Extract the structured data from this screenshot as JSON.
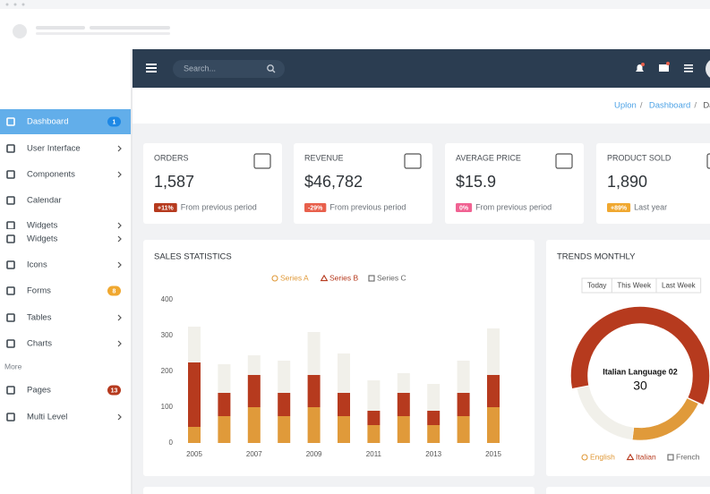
{
  "topbar": {
    "search_placeholder": "Search..."
  },
  "breadcrumb": [
    "Uplon",
    "Dashboard",
    "Dashboard"
  ],
  "sidebar": {
    "menu": [
      {
        "label": "Dashboard",
        "badge": "1",
        "badge_color": "#1e88e5"
      },
      {
        "label": "User Interface"
      },
      {
        "label": "Components"
      },
      {
        "label": "Calendar"
      },
      {
        "label": "Widgets"
      },
      {
        "label": "Widgets"
      },
      {
        "label": "Icons"
      },
      {
        "label": "Forms",
        "badge": "8",
        "badge_color": "#f0a830"
      },
      {
        "label": "Tables"
      },
      {
        "label": "Charts"
      }
    ],
    "more_label": "More",
    "more_menu": [
      {
        "label": "Pages",
        "badge": "13",
        "badge_color": "#b63a1e"
      },
      {
        "label": "Multi Level"
      }
    ]
  },
  "stats": [
    {
      "title": "ORDERS",
      "value": "1,587",
      "change": "+11%",
      "change_color": "#b63a1e",
      "note": "From previous period"
    },
    {
      "title": "REVENUE",
      "value": "$46,782",
      "change": "-29%",
      "change_color": "#e8604c",
      "note": "From previous period"
    },
    {
      "title": "AVERAGE PRICE",
      "value": "$15.9",
      "change": "0%",
      "change_color": "#f06292",
      "note": "From previous period"
    },
    {
      "title": "PRODUCT SOLD",
      "value": "1,890",
      "change": "+89%",
      "change_color": "#f0a830",
      "note": "Last year"
    }
  ],
  "chart_data": [
    {
      "type": "bar",
      "stacked": true,
      "title": "SALES STATISTICS",
      "categories": [
        "2005",
        null,
        "2007",
        null,
        "2009",
        null,
        "2011",
        null,
        "2013",
        null,
        "2015"
      ],
      "series": [
        {
          "name": "Series A",
          "color": "#e09a3a",
          "marker": "circle",
          "values": [
            45,
            75,
            100,
            75,
            100,
            75,
            50,
            75,
            50,
            75,
            100
          ]
        },
        {
          "name": "Series B",
          "color": "#b63a1e",
          "marker": "triangle",
          "values": [
            180,
            65,
            90,
            65,
            90,
            65,
            40,
            65,
            40,
            65,
            90
          ]
        },
        {
          "name": "Series C",
          "color": "#f1f0ea",
          "marker": "square",
          "values": [
            100,
            80,
            55,
            90,
            120,
            110,
            85,
            55,
            75,
            90,
            130
          ]
        }
      ],
      "ylim": [
        0,
        400
      ],
      "yticks": [
        0,
        100,
        200,
        300,
        400
      ],
      "grid": false
    },
    {
      "type": "pie",
      "donut": true,
      "title": "TRENDS MONTHLY",
      "buttons": [
        "Today",
        "This Week",
        "Last Week"
      ],
      "categories": [
        "English",
        "Italian",
        "French"
      ],
      "markers": [
        "circle",
        "triangle",
        "square"
      ],
      "values": [
        10,
        30,
        10
      ],
      "colors": [
        "#e09a3a",
        "#b63a1e",
        "#f1f0ea"
      ],
      "annotation": "Italian Language 02"
    }
  ]
}
